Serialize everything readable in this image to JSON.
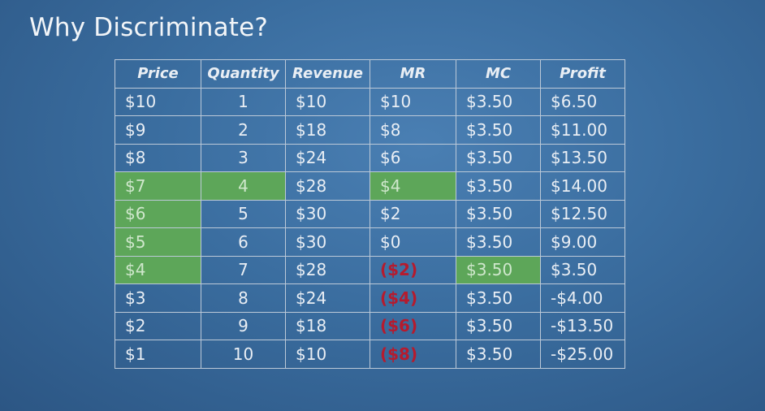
{
  "slide": {
    "title": "Why Discriminate?"
  },
  "table": {
    "headers": [
      "Price",
      "Quantity",
      "Revenue",
      "MR",
      "MC",
      "Profit"
    ],
    "rows": [
      [
        "$10",
        "1",
        "$10",
        "$10",
        "$3.50",
        "$6.50"
      ],
      [
        "$9",
        "2",
        "$18",
        "$8",
        "$3.50",
        "$11.00"
      ],
      [
        "$8",
        "3",
        "$24",
        "$6",
        "$3.50",
        "$13.50"
      ],
      [
        "$7",
        "4",
        "$28",
        "$4",
        "$3.50",
        "$14.00"
      ],
      [
        "$6",
        "5",
        "$30",
        "$2",
        "$3.50",
        "$12.50"
      ],
      [
        "$5",
        "6",
        "$30",
        "$0",
        "$3.50",
        "$9.00"
      ],
      [
        "$4",
        "7",
        "$28",
        "($2)",
        "$3.50",
        "$3.50"
      ],
      [
        "$3",
        "8",
        "$24",
        "($4)",
        "$3.50",
        "-$4.00"
      ],
      [
        "$2",
        "9",
        "$18",
        "($6)",
        "$3.50",
        "-$13.50"
      ],
      [
        "$1",
        "10",
        "$10",
        "($8)",
        "$3.50",
        "-$25.00"
      ]
    ]
  },
  "colors": {
    "background": "#3a6d9f",
    "highlight_green": "#5da659",
    "negative_red": "#b51b2e",
    "grid_line": "#bcc9d8"
  }
}
